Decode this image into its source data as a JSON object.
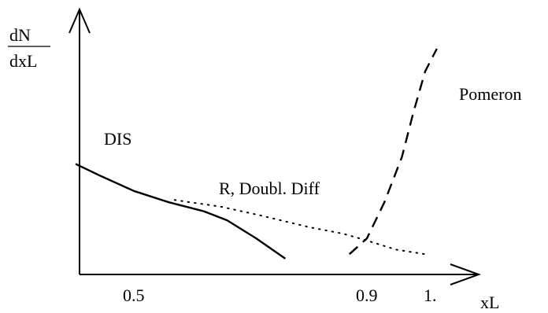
{
  "chart_data": {
    "type": "line",
    "xlabel": "xL",
    "ylabel_numerator": "dN",
    "ylabel_denominator": "dxL",
    "x_ticks": [
      "0.5",
      "0.9",
      "1."
    ],
    "xlim": [
      0.35,
      1.1
    ],
    "ylim": [
      0,
      10
    ],
    "series": [
      {
        "name": "DIS",
        "style": "solid",
        "x": [
          0.4,
          0.44,
          0.5,
          0.56,
          0.62,
          0.66,
          0.71,
          0.76
        ],
        "y": [
          4.9,
          4.4,
          3.7,
          3.2,
          2.8,
          2.4,
          1.6,
          0.7
        ]
      },
      {
        "name": "R, Doubl. Diff",
        "style": "dotted",
        "x": [
          0.57,
          0.65,
          0.72,
          0.8,
          0.86,
          0.9,
          0.95,
          1.0
        ],
        "y": [
          3.3,
          3.0,
          2.6,
          2.1,
          1.8,
          1.5,
          1.1,
          0.9
        ]
      },
      {
        "name": "Pomeron",
        "style": "dashed",
        "x": [
          0.87,
          0.9,
          0.93,
          0.96,
          0.98,
          1.0,
          1.02
        ],
        "y": [
          0.9,
          1.6,
          3.2,
          5.2,
          7.2,
          9.0,
          10.0
        ]
      }
    ]
  }
}
